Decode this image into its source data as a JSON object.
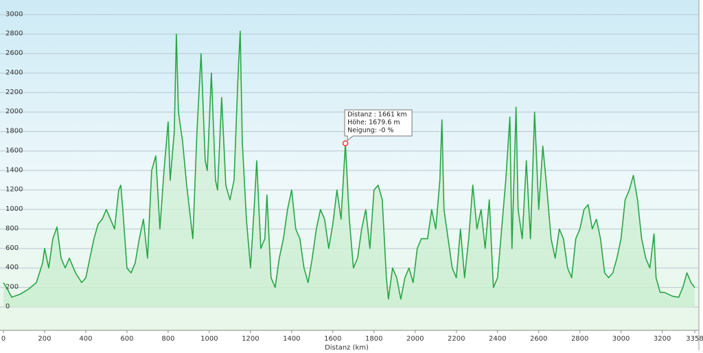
{
  "chart_data": {
    "type": "line",
    "x_label": "Distanz  (km)",
    "xlim": [
      0,
      3358
    ],
    "xticks": [
      0,
      200,
      400,
      600,
      800,
      1000,
      1200,
      1400,
      1600,
      1800,
      2000,
      2200,
      2400,
      2600,
      2800,
      3000,
      3200,
      3358
    ],
    "ylim": [
      -240,
      3150
    ],
    "yticks": [
      0,
      200,
      400,
      600,
      800,
      1000,
      1200,
      1400,
      1600,
      1800,
      2000,
      2200,
      2400,
      2600,
      2800,
      3000
    ],
    "grid": true,
    "series": [
      {
        "color": "#27a544",
        "x": [
          0,
          20,
          40,
          80,
          120,
          160,
          190,
          200,
          220,
          240,
          260,
          280,
          300,
          320,
          350,
          380,
          400,
          420,
          440,
          460,
          480,
          500,
          520,
          540,
          560,
          570,
          580,
          600,
          620,
          640,
          660,
          680,
          700,
          720,
          740,
          760,
          780,
          800,
          810,
          830,
          840,
          850,
          870,
          890,
          920,
          940,
          960,
          980,
          990,
          1000,
          1010,
          1030,
          1040,
          1060,
          1070,
          1080,
          1100,
          1120,
          1140,
          1150,
          1160,
          1180,
          1200,
          1220,
          1230,
          1250,
          1270,
          1280,
          1300,
          1320,
          1340,
          1360,
          1380,
          1400,
          1420,
          1440,
          1460,
          1480,
          1500,
          1520,
          1540,
          1560,
          1580,
          1600,
          1620,
          1640,
          1661,
          1680,
          1700,
          1720,
          1740,
          1760,
          1780,
          1800,
          1820,
          1840,
          1860,
          1870,
          1890,
          1910,
          1930,
          1950,
          1970,
          1990,
          2010,
          2030,
          2060,
          2080,
          2100,
          2120,
          2130,
          2140,
          2160,
          2180,
          2200,
          2220,
          2240,
          2260,
          2280,
          2300,
          2320,
          2340,
          2360,
          2380,
          2400,
          2420,
          2440,
          2460,
          2470,
          2490,
          2500,
          2520,
          2540,
          2560,
          2580,
          2600,
          2620,
          2640,
          2660,
          2680,
          2700,
          2720,
          2740,
          2760,
          2780,
          2800,
          2820,
          2840,
          2860,
          2880,
          2900,
          2920,
          2940,
          2960,
          2980,
          3000,
          3020,
          3040,
          3060,
          3080,
          3100,
          3120,
          3140,
          3160,
          3170,
          3190,
          3210,
          3250,
          3280,
          3300,
          3320,
          3340,
          3358
        ],
        "values": [
          250,
          180,
          100,
          130,
          180,
          250,
          450,
          600,
          400,
          700,
          820,
          500,
          400,
          500,
          350,
          250,
          300,
          500,
          700,
          850,
          900,
          1000,
          900,
          800,
          1200,
          1250,
          1000,
          400,
          350,
          450,
          700,
          900,
          500,
          1400,
          1550,
          800,
          1400,
          1900,
          1300,
          1800,
          2800,
          2000,
          1700,
          1250,
          700,
          1800,
          2600,
          1500,
          1400,
          1900,
          2400,
          1300,
          1200,
          2150,
          1700,
          1250,
          1100,
          1300,
          2400,
          2830,
          1700,
          900,
          400,
          1100,
          1500,
          600,
          700,
          1150,
          300,
          200,
          500,
          700,
          1000,
          1200,
          800,
          700,
          400,
          250,
          500,
          800,
          1000,
          900,
          600,
          850,
          1200,
          900,
          1679.6,
          900,
          400,
          500,
          800,
          1000,
          600,
          1200,
          1250,
          1100,
          300,
          80,
          400,
          300,
          80,
          300,
          400,
          250,
          600,
          700,
          700,
          1000,
          800,
          1300,
          1920,
          1000,
          700,
          400,
          300,
          800,
          300,
          700,
          1250,
          800,
          1000,
          600,
          1100,
          200,
          300,
          800,
          1300,
          1950,
          600,
          2050,
          1000,
          700,
          1500,
          700,
          2000,
          1000,
          1650,
          1200,
          700,
          500,
          800,
          700,
          400,
          300,
          700,
          800,
          1000,
          1050,
          800,
          900,
          700,
          350,
          300,
          350,
          500,
          700,
          1100,
          1200,
          1350,
          1100,
          700,
          500,
          400,
          750,
          300,
          150,
          150,
          110,
          100,
          200,
          350,
          250,
          200
        ]
      }
    ],
    "annotations": [
      "Distanz : 1661 km",
      "Höhe: 1679.6 m",
      "Neigung: -0 %"
    ]
  }
}
